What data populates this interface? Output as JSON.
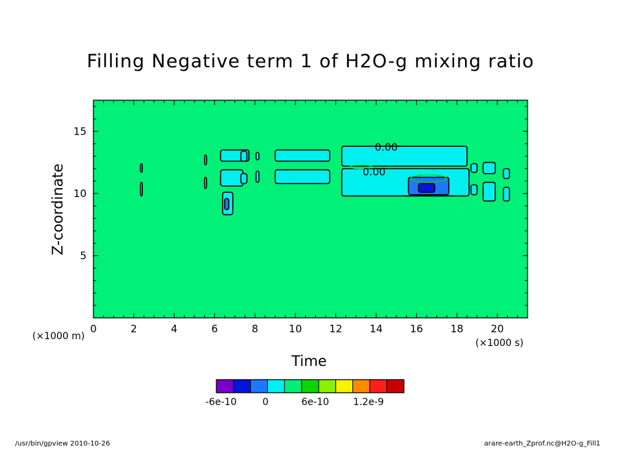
{
  "chart_data": {
    "type": "heatmap",
    "title": "Filling Negative term 1 of H2O-g mixing ratio",
    "xlabel": "Time",
    "ylabel": "Z-coordinate",
    "x_scale_label": "(×1000 s)",
    "y_scale_label": "(×1000 m)",
    "xlim": [
      0,
      21.5
    ],
    "ylim": [
      0,
      17.5
    ],
    "x_ticks": [
      0,
      2,
      4,
      6,
      8,
      10,
      12,
      14,
      16,
      18,
      20
    ],
    "y_ticks": [
      5,
      10,
      15
    ],
    "background_value": 0,
    "contour_labels": [
      {
        "text": "0.00",
        "x": 14.5,
        "z": 13.7
      },
      {
        "text": "0.00",
        "x": 13.9,
        "z": 11.7
      }
    ],
    "negative_regions": [
      {
        "x": [
          2.33,
          2.42
        ],
        "z": [
          11.7,
          12.4
        ],
        "level": 0
      },
      {
        "x": [
          2.33,
          2.42
        ],
        "z": [
          9.8,
          10.9
        ],
        "level": 0
      },
      {
        "x": [
          5.5,
          5.6
        ],
        "z": [
          12.3,
          13.1
        ],
        "level": 0
      },
      {
        "x": [
          5.5,
          5.6
        ],
        "z": [
          10.4,
          11.3
        ],
        "level": 0
      },
      {
        "x": [
          6.3,
          7.7
        ],
        "z": [
          12.6,
          13.5
        ],
        "level": 0
      },
      {
        "x": [
          6.3,
          7.4
        ],
        "z": [
          10.6,
          11.9
        ],
        "level": 0
      },
      {
        "x": [
          6.4,
          6.9
        ],
        "z": [
          8.3,
          10.1
        ],
        "level": 0
      },
      {
        "x": [
          6.5,
          6.7
        ],
        "z": [
          8.7,
          9.6
        ],
        "level": -1
      },
      {
        "x": [
          7.3,
          7.6
        ],
        "z": [
          12.6,
          13.4
        ],
        "level": 0
      },
      {
        "x": [
          7.3,
          7.6
        ],
        "z": [
          10.8,
          11.6
        ],
        "level": 0
      },
      {
        "x": [
          8.05,
          8.2
        ],
        "z": [
          12.7,
          13.3
        ],
        "level": 0
      },
      {
        "x": [
          8.05,
          8.2
        ],
        "z": [
          10.9,
          11.8
        ],
        "level": 0
      },
      {
        "x": [
          9.0,
          11.7
        ],
        "z": [
          12.6,
          13.5
        ],
        "level": 0
      },
      {
        "x": [
          9.0,
          11.7
        ],
        "z": [
          10.8,
          11.9
        ],
        "level": 0
      },
      {
        "x": [
          12.3,
          18.5
        ],
        "z": [
          12.2,
          13.8
        ],
        "level": 0
      },
      {
        "x": [
          12.3,
          18.6
        ],
        "z": [
          9.8,
          12.0
        ],
        "level": 0
      },
      {
        "x": [
          15.6,
          17.6
        ],
        "z": [
          9.9,
          11.3
        ],
        "level": -1
      },
      {
        "x": [
          16.1,
          16.9
        ],
        "z": [
          10.1,
          10.8
        ],
        "level": -2
      },
      {
        "x": [
          18.7,
          19.0
        ],
        "z": [
          11.7,
          12.4
        ],
        "level": 0
      },
      {
        "x": [
          18.7,
          19.0
        ],
        "z": [
          9.9,
          10.7
        ],
        "level": 0
      },
      {
        "x": [
          19.3,
          19.9
        ],
        "z": [
          11.6,
          12.5
        ],
        "level": 0
      },
      {
        "x": [
          19.3,
          19.9
        ],
        "z": [
          9.4,
          10.9
        ],
        "level": 0
      },
      {
        "x": [
          20.3,
          20.6
        ],
        "z": [
          11.2,
          12.0
        ],
        "level": 0
      },
      {
        "x": [
          20.3,
          20.6
        ],
        "z": [
          9.4,
          10.5
        ],
        "level": 0
      }
    ],
    "positive_regions": [
      {
        "x": [
          12.7,
          13.8
        ],
        "z": [
          12.0,
          12.3
        ],
        "level": 1
      },
      {
        "x": [
          15.7,
          17.5
        ],
        "z": [
          10.9,
          11.5
        ],
        "level": 2
      }
    ],
    "colorbar": {
      "levels": [
        "<-6e-10",
        "-6e-10",
        "-3e-10",
        "0",
        "3e-10",
        "6e-10",
        "9e-10",
        "1.2e-9",
        ">1.2e-9"
      ],
      "colors": [
        "#7a00c8",
        "#0014dc",
        "#1e78ff",
        "#00f0f0",
        "#00f078",
        "#0ad700",
        "#8cf000",
        "#f5f500",
        "#ff8c00",
        "#ff1e1e",
        "#c80000"
      ],
      "labels": [
        "-6e-10",
        "0",
        "6e-10",
        "1.2e-9"
      ]
    }
  },
  "footer": {
    "left": "/usr/bin/gpview   2010-10-26",
    "right": "arare-earth_Zprof.nc@H2O-g_Fill1"
  }
}
